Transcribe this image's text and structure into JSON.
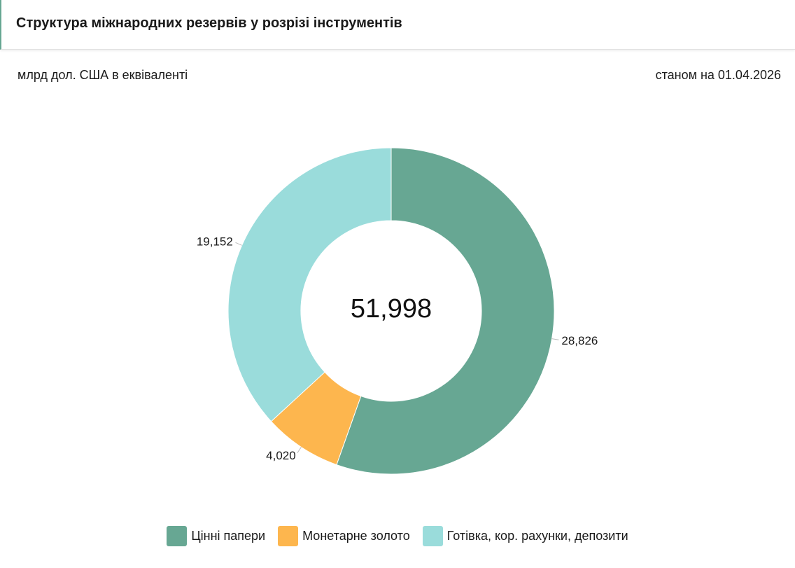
{
  "header": {
    "title": "Структура міжнародних резервів у розрізі інструментів"
  },
  "subtitle": {
    "unit": "млрд дол. США в еквіваленті",
    "date": "станом на 01.04.2026"
  },
  "colors": {
    "accent": "#67a793"
  },
  "chart_data": {
    "type": "pie",
    "donut": true,
    "center_label": "51,998",
    "categories": [
      "Цінні папери",
      "Монетарне золото",
      "Готівка, кор. рахунки, депозити"
    ],
    "values": [
      28.826,
      4.02,
      19.152
    ],
    "value_labels": [
      "28,826",
      "4,020",
      "19,152"
    ],
    "colors": [
      "#67a793",
      "#fdb64e",
      "#9adcdb"
    ],
    "legend_position": "bottom-center"
  }
}
